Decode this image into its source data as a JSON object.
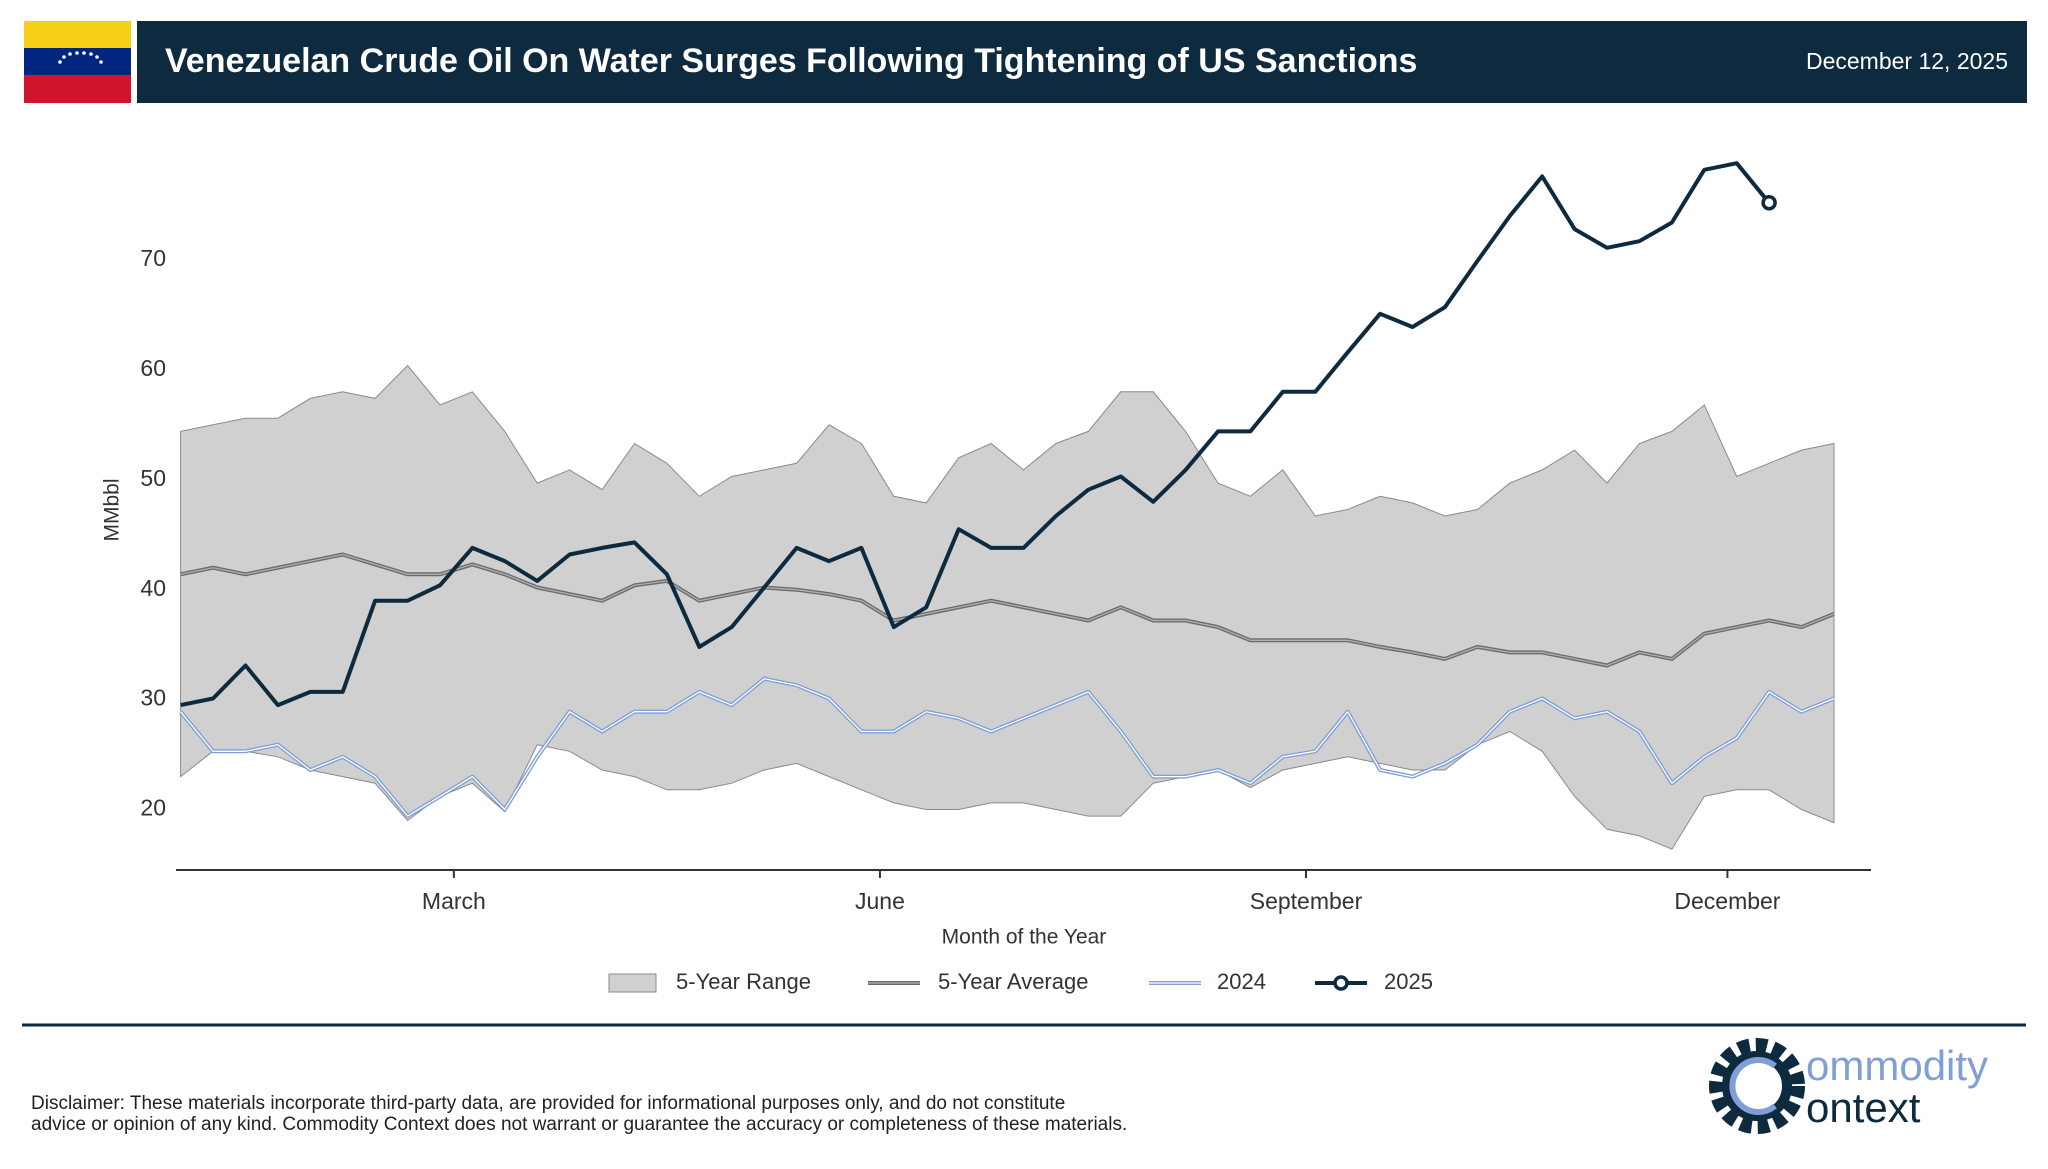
{
  "chart_data": {
    "type": "line",
    "title": "Venezuelan Crude Oil On Water Surges Following Tightening of US Sanctions",
    "date": "December 12, 2025",
    "xlabel": "Month of the Year",
    "ylabel": "MMbbl",
    "x": [
      1,
      8,
      15,
      22,
      29,
      36,
      43,
      50,
      57,
      64,
      71,
      78,
      85,
      92,
      99,
      106,
      113,
      120,
      127,
      134,
      141,
      148,
      155,
      162,
      169,
      176,
      183,
      190,
      197,
      204,
      211,
      218,
      225,
      232,
      239,
      246,
      253,
      260,
      267,
      274,
      281,
      288,
      295,
      302,
      309,
      316,
      323,
      330,
      337,
      344,
      351,
      358
    ],
    "xlim": [
      0,
      366
    ],
    "xticks": [
      {
        "value": 60,
        "label": "March"
      },
      {
        "value": 152,
        "label": "June"
      },
      {
        "value": 244,
        "label": "September"
      },
      {
        "value": 335,
        "label": "December"
      }
    ],
    "ylim": [
      14.5,
      80
    ],
    "yticks": [
      20,
      30,
      40,
      50,
      60,
      70
    ],
    "grid": false,
    "series": [
      {
        "name": "5-Year Range",
        "color": "#d0d0d0",
        "high": [
          54.4,
          55,
          55.6,
          55.6,
          57.4,
          58,
          57.4,
          60.4,
          56.8,
          58,
          54.4,
          49.7,
          50.9,
          49.1,
          53.3,
          51.5,
          48.5,
          50.3,
          50.9,
          51.5,
          55,
          53.3,
          48.5,
          47.9,
          52,
          53.3,
          50.9,
          53.3,
          54.4,
          58,
          58,
          54.4,
          49.7,
          48.5,
          50.9,
          46.7,
          47.3,
          48.5,
          47.9,
          46.7,
          47.3,
          49.7,
          50.9,
          52.7,
          49.7,
          53.3,
          54.4,
          56.8,
          50.3,
          51.5,
          52.7,
          53.3
        ],
        "low": [
          23,
          25.3,
          25.3,
          24.8,
          23.6,
          23,
          22.4,
          19,
          21.2,
          22.4,
          19.8,
          25.9,
          25.3,
          23.6,
          23,
          21.8,
          21.8,
          22.4,
          23.6,
          24.2,
          23,
          21.8,
          20.6,
          20,
          20,
          20.6,
          20.6,
          20,
          19.4,
          19.4,
          22.4,
          23,
          23.6,
          22,
          23.6,
          24.2,
          24.8,
          24.2,
          23.6,
          23.6,
          25.9,
          27.1,
          25.3,
          21.2,
          18.2,
          17.6,
          16.4,
          21.2,
          21.8,
          21.8,
          20,
          18.8
        ]
      },
      {
        "name": "5-Year Average",
        "color": "#6b6b6b",
        "values": [
          41.4,
          42,
          41.4,
          42,
          42.6,
          43.2,
          42.3,
          41.4,
          41.4,
          42.3,
          41.4,
          40.2,
          39.6,
          39,
          40.4,
          40.8,
          39,
          39.6,
          40.2,
          40,
          39.6,
          39,
          37.2,
          37.8,
          38.4,
          39,
          38.4,
          37.8,
          37.2,
          38.4,
          37.2,
          37.2,
          36.6,
          35.4,
          35.4,
          35.4,
          35.4,
          34.8,
          34.3,
          33.7,
          34.8,
          34.3,
          34.3,
          33.7,
          33.1,
          34.3,
          33.7,
          36,
          36.6,
          37.2,
          36.6,
          37.8
        ]
      },
      {
        "name": "2024",
        "color": "#7f9fd6",
        "values": [
          28.9,
          25.3,
          25.3,
          25.9,
          23.6,
          24.8,
          23,
          19.4,
          21.2,
          23,
          20,
          24.8,
          28.9,
          27.1,
          28.9,
          28.9,
          30.7,
          29.5,
          31.9,
          31.3,
          30.1,
          27.1,
          27.1,
          28.9,
          28.3,
          27.1,
          28.3,
          29.5,
          30.7,
          27.1,
          23,
          23,
          23.6,
          22.4,
          24.8,
          25.3,
          28.9,
          23.6,
          23,
          24.2,
          25.9,
          28.9,
          30.1,
          28.3,
          28.9,
          27.1,
          22.4,
          24.8,
          26.5,
          30.7,
          28.9,
          30.1
        ]
      },
      {
        "name": "2025",
        "color": "#0d2a3f",
        "values": [
          29.5,
          30.1,
          33.1,
          29.5,
          30.7,
          30.7,
          39,
          39,
          40.4,
          43.8,
          42.6,
          40.8,
          43.2,
          43.8,
          44.3,
          41.4,
          34.8,
          36.6,
          40.2,
          43.8,
          42.6,
          43.8,
          36.6,
          38.4,
          45.5,
          43.8,
          43.8,
          46.7,
          49.1,
          50.3,
          48,
          50.9,
          54.4,
          54.4,
          58,
          58,
          61.6,
          65.1,
          63.9,
          65.7,
          69.9,
          74,
          77.6,
          72.8,
          71.1,
          71.7,
          73.4,
          78.2,
          78.8,
          75.2,
          null,
          null
        ]
      }
    ]
  },
  "disclaimer": [
    "Disclaimer: These materials incorporate third-party data, are provided for informational purposes only, and do not constitute",
    "advice or opinion of any kind. Commodity Context does not warrant or guarantee the accuracy or completeness of these materials."
  ],
  "logo": {
    "top": "ommodity",
    "bottom": "ontext"
  }
}
